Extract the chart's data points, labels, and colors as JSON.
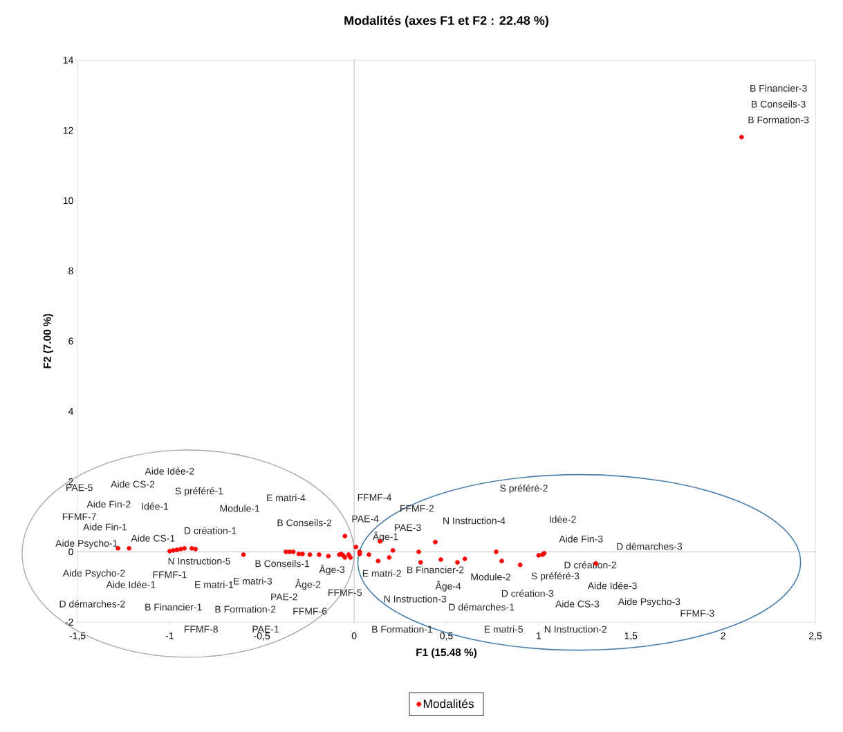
{
  "chart_data": {
    "type": "scatter",
    "title": "Modalités (axes F1 et F2 : 22.48 %)",
    "xlabel": "F1 (15.48 %)",
    "ylabel": "F2 (7.00 %)",
    "xlim": [
      -1.5,
      2.5
    ],
    "ylim": [
      -2,
      14
    ],
    "xticks": [
      {
        "value": -1.5,
        "label": "-1,5"
      },
      {
        "value": -1,
        "label": "-1"
      },
      {
        "value": -0.5,
        "label": "-0,5"
      },
      {
        "value": 0,
        "label": "0"
      },
      {
        "value": 0.5,
        "label": "0,5"
      },
      {
        "value": 1,
        "label": "1"
      },
      {
        "value": 1.5,
        "label": "1,5"
      },
      {
        "value": 2,
        "label": "2"
      },
      {
        "value": 2.5,
        "label": "2,5"
      }
    ],
    "yticks": [
      -2,
      0,
      2,
      4,
      6,
      8,
      10,
      12,
      14
    ],
    "legend": "bottom",
    "series": [
      {
        "name": "Modalités",
        "color": "#ff0000",
        "x": [
          -1.28,
          -1.22,
          -1.0,
          -0.98,
          -0.96,
          -0.94,
          -0.92,
          -0.88,
          -0.86,
          -0.6,
          -0.37,
          -0.35,
          -0.33,
          -0.3,
          -0.28,
          -0.24,
          -0.19,
          -0.14,
          -0.08,
          -0.07,
          -0.06,
          -0.05,
          -0.05,
          -0.03,
          -0.02,
          0.01,
          0.03,
          0.03,
          0.08,
          0.13,
          0.14,
          0.19,
          0.21,
          0.35,
          0.36,
          0.44,
          0.47,
          0.56,
          0.6,
          0.77,
          0.8,
          0.9,
          1.0,
          1.02,
          1.03,
          1.31,
          2.1
        ],
        "values": [
          0.1,
          0.1,
          0.02,
          0.04,
          0.06,
          0.08,
          0.1,
          0.1,
          0.08,
          -0.08,
          0.0,
          0.0,
          0.0,
          -0.06,
          -0.06,
          -0.08,
          -0.08,
          -0.12,
          -0.08,
          -0.06,
          -0.1,
          -0.16,
          0.45,
          -0.08,
          -0.16,
          0.14,
          0.0,
          -0.06,
          -0.08,
          -0.26,
          0.3,
          -0.16,
          0.04,
          0.0,
          -0.3,
          0.28,
          -0.22,
          -0.3,
          -0.2,
          0.0,
          -0.26,
          -0.37,
          -0.1,
          -0.08,
          -0.04,
          -0.33,
          11.81
        ]
      }
    ],
    "annotations": [
      "Aide Idée-2",
      "PAE-5",
      "Aide CS-2",
      "S préféré-1",
      "Aide Fin-2",
      "Idée-1",
      "E matri-4",
      "Module-1",
      "FFMF-7",
      "B Conseils-2",
      "Aide Fin-1",
      "D création-1",
      "Aide CS-1",
      "Aide Psycho-1",
      "N Instruction-5",
      "B Conseils-1",
      "Âge-3",
      "E matri-2",
      "B Financier-2",
      "Aide Psycho-2",
      "FFMF-1",
      "Aide Idée-1",
      "E matri-1",
      "E matri-3",
      "Âge-2",
      "PAE-2",
      "FFMF-5",
      "D démarches-2",
      "B Financier-1",
      "B Formation-2",
      "FFMF-6",
      "FFMF-8",
      "PAE-1",
      "B Formation-1",
      "E matri-5",
      "N Instruction-2",
      "FFMF-4",
      "FFMF-2",
      "PAE-4",
      "PAE-3",
      "Âge-1",
      "S préféré-2",
      "N Instruction-4",
      "Idée-2",
      "Aide Fin-3",
      "D démarches-3",
      "D création-2",
      "Module-2",
      "S préféré-3",
      "Âge-4",
      "Aide Idée-3",
      "D création-3",
      "N Instruction-3",
      "D démarches-1",
      "Aide CS-3",
      "Aide Psycho-3",
      "FFMF-3",
      "B Financier-3",
      "B Conseils-3",
      "B Formation-3"
    ]
  }
}
